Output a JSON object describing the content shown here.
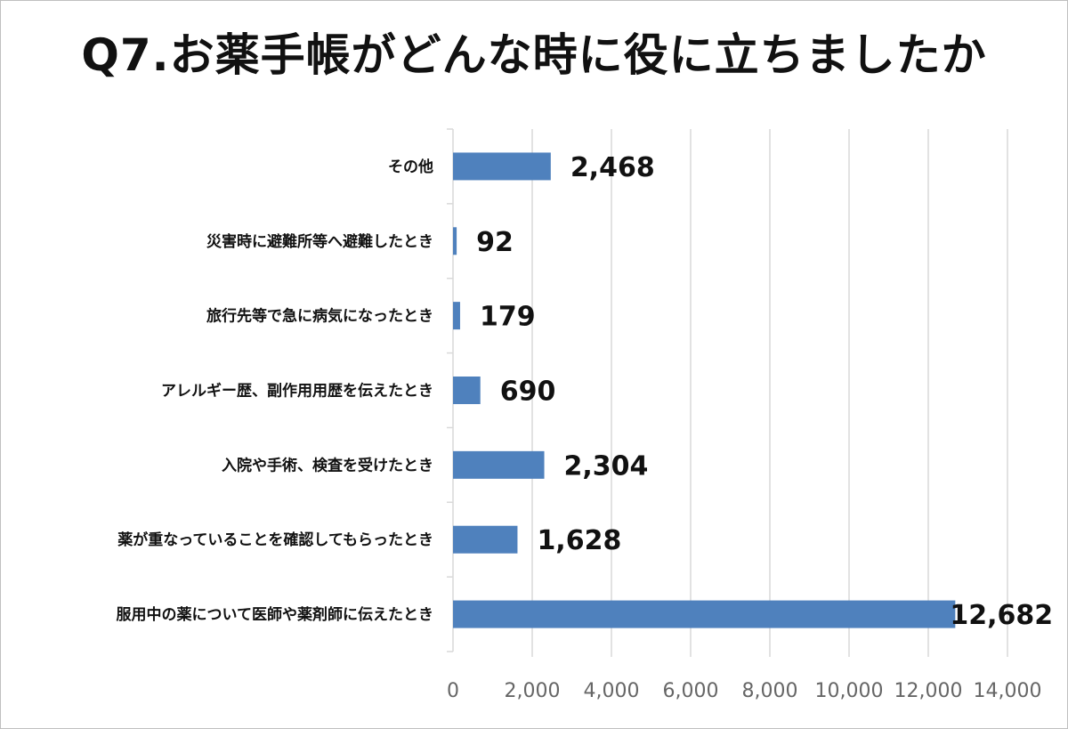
{
  "chart_data": {
    "type": "bar",
    "orientation": "horizontal",
    "title": "Q7.お薬手帳がどんな時に役に立ちましたか",
    "categories": [
      "その他",
      "災害時に避難所等へ避難したとき",
      "旅行先等で急に病気になったとき",
      "アレルギー歴、副作用用歴を伝えたとき",
      "入院や手術、検査を受けたとき",
      "薬が重なっていることを確認してもらったとき",
      "服用中の薬について医師や薬剤師に伝えたとき"
    ],
    "values": [
      2468,
      92,
      179,
      690,
      2304,
      1628,
      12682
    ],
    "data_labels": [
      "2,468",
      "92",
      "179",
      "690",
      "2,304",
      "1,628",
      "12,682"
    ],
    "xlim": [
      0,
      14000
    ],
    "ticks": [
      0,
      2000,
      4000,
      6000,
      8000,
      10000,
      12000,
      14000
    ],
    "tick_labels": [
      "0",
      "2,000",
      "4,000",
      "6,000",
      "8,000",
      "10,000",
      "12,000",
      "14,000"
    ],
    "grid": true,
    "legend": "none",
    "bar_color": "#4f81bd"
  }
}
